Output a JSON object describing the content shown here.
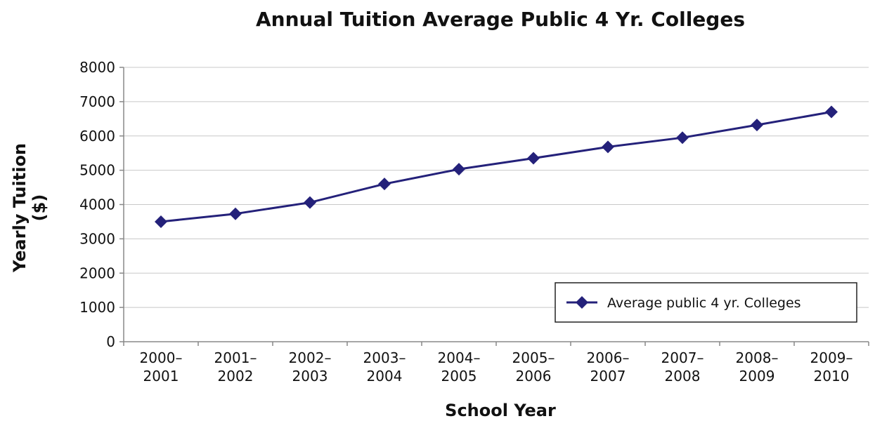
{
  "chart_data": {
    "type": "line",
    "title": "Annual Tuition Average Public 4 Yr. Colleges",
    "xlabel": "School Year",
    "ylabel_line1": "Yearly Tuition",
    "ylabel_line2": "($)",
    "categories": [
      [
        "2000–",
        "2001"
      ],
      [
        "2001–",
        "2002"
      ],
      [
        "2002–",
        "2003"
      ],
      [
        "2003–",
        "2004"
      ],
      [
        "2004–",
        "2005"
      ],
      [
        "2005–",
        "2006"
      ],
      [
        "2006–",
        "2007"
      ],
      [
        "2007–",
        "2008"
      ],
      [
        "2008–",
        "2009"
      ],
      [
        "2009–",
        "2010"
      ]
    ],
    "series": [
      {
        "name": "Average public 4 yr. Colleges",
        "color": "#24217a",
        "marker": "diamond",
        "values": [
          3500,
          3730,
          4060,
          4600,
          5030,
          5350,
          5680,
          5950,
          6320,
          6700
        ]
      }
    ],
    "ylim": [
      0,
      8000
    ],
    "yticks": [
      "0",
      "1000",
      "2000",
      "3000",
      "4000",
      "5000",
      "6000",
      "7000",
      "8000"
    ],
    "grid": true,
    "legend_position": "bottom-right"
  }
}
